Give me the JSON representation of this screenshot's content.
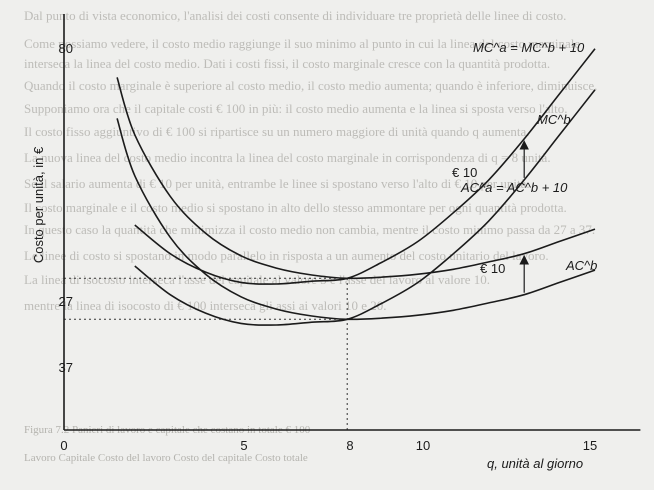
{
  "background_text": [
    "Dal punto di vista economico, l'analisi dei costi consente di individuare tre proprietà delle linee di costo.",
    "Come possiamo vedere, il costo medio raggiunge il suo minimo al punto in cui la linea del costo marginale",
    "interseca la linea del costo medio. Dati i costi fissi, il costo marginale cresce con la quantità prodotta.",
    "Quando il costo marginale è superiore al costo medio, il costo medio aumenta; quando è inferiore, diminuisce.",
    "Supponiamo ora che il capitale costi € 100 in più: il costo medio aumenta e la linea si sposta verso l'alto.",
    "Il costo fisso aggiuntivo di € 100 si ripartisce su un numero maggiore di unità quando q aumenta.",
    "La nuova linea del costo medio incontra la linea del costo marginale in corrispondenza di q = 8 unità.",
    "Se il salario aumenta di € 10 per unità, entrambe le linee si spostano verso l'alto di € 10 per unità.",
    "Il costo marginale e il costo medio si spostano in alto dello stesso ammontare per ogni quantità prodotta.",
    "In questo caso la quantità che minimizza il costo medio non cambia, mentre il costo minimo passa da 27 a 37.",
    "Le linee di costo si spostano in modo parallelo in risposta a un aumento del costo unitario del lavoro.",
    "La linea di isocosto interseca l'asse del capitale al valore 5 e l'asse del lavoro al valore 10.",
    "mentre la linea di isocosto di € 100 interseca gli assi ai valori 10 e 20.",
    "Figura 7.2  Panieri di lavoro e capitale che costano in totale € 100",
    "Lavoro  Capitale  Costo del lavoro  Costo del capitale  Costo totale"
  ],
  "chart_data": {
    "type": "line",
    "xlabel": "q, unità al giorno",
    "ylabel": "Costo per unità, in €",
    "x_ticks": [
      "0",
      "5",
      "8",
      "10",
      "15"
    ],
    "y_ticks": [
      "27",
      "37",
      "80"
    ],
    "xlim": [
      0,
      16
    ],
    "ylim": [
      0,
      95
    ],
    "series": [
      {
        "name": "MC^b",
        "x": [
          2,
          3,
          4,
          5,
          6,
          7,
          8,
          9,
          10,
          11,
          12,
          13,
          14,
          15
        ],
        "y": [
          40,
          33,
          28.5,
          26,
          25.6,
          26.3,
          27,
          31,
          36,
          43,
          51,
          61,
          72,
          83
        ]
      },
      {
        "name": "MC^a = MC^b + 10",
        "x": [
          2,
          3,
          4,
          5,
          6,
          7,
          8,
          9,
          10,
          11,
          12,
          13,
          14,
          15
        ],
        "y": [
          50,
          43,
          38.5,
          36,
          35.6,
          36.3,
          37,
          41,
          46,
          53,
          61,
          71,
          82,
          93
        ]
      },
      {
        "name": "AC^b",
        "x": [
          1.5,
          2,
          3,
          4,
          5,
          6,
          7,
          8,
          9,
          10,
          11,
          12,
          13,
          14,
          15
        ],
        "y": [
          76,
          62,
          47,
          38,
          32.5,
          29.5,
          27.8,
          27,
          27.3,
          28,
          29.2,
          31,
          33,
          36,
          39
        ]
      },
      {
        "name": "AC^a = AC^b + 10",
        "x": [
          1.5,
          2,
          3,
          4,
          5,
          6,
          7,
          8,
          9,
          10,
          11,
          12,
          13,
          14,
          15
        ],
        "y": [
          86,
          72,
          57,
          48,
          42.5,
          39.5,
          37.8,
          37,
          37.3,
          38,
          39.2,
          41,
          43,
          46,
          49
        ]
      }
    ],
    "annotations": [
      {
        "label_text": "€ 10",
        "series_pair": [
          "MC^b",
          "MC^a = MC^b + 10"
        ],
        "at_x": 13
      },
      {
        "label_text": "€ 10",
        "series_pair": [
          "AC^b",
          "AC^a = AC^b + 10"
        ],
        "at_x": 13
      }
    ],
    "reference_lines": {
      "x": 8,
      "y": [
        27,
        37
      ]
    },
    "grid": false,
    "legend": "labels-on-curves"
  }
}
